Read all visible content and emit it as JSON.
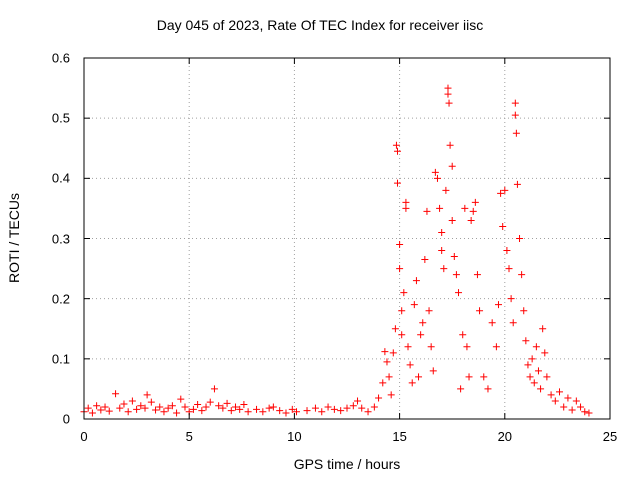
{
  "chart_data": {
    "type": "scatter",
    "title": "Day 045 of 2023, Rate Of TEC Index for receiver iisc",
    "xlabel": "GPS time / hours",
    "ylabel": "ROTI / TECUs",
    "xlim": [
      0,
      25
    ],
    "ylim": [
      0,
      0.6
    ],
    "xticks": [
      "0",
      "5",
      "10",
      "15",
      "20",
      "25"
    ],
    "yticks": [
      "0",
      "0.1",
      "0.2",
      "0.3",
      "0.4",
      "0.5",
      "0.6"
    ],
    "grid": true,
    "marker": "+",
    "color": "#ff0000",
    "series": [
      {
        "name": "ROTI",
        "points": [
          [
            0.0,
            0.012
          ],
          [
            0.2,
            0.018
          ],
          [
            0.4,
            0.01
          ],
          [
            0.6,
            0.022
          ],
          [
            0.8,
            0.015
          ],
          [
            1.0,
            0.02
          ],
          [
            1.2,
            0.013
          ],
          [
            1.5,
            0.042
          ],
          [
            1.7,
            0.018
          ],
          [
            1.9,
            0.025
          ],
          [
            2.1,
            0.012
          ],
          [
            2.3,
            0.03
          ],
          [
            2.5,
            0.016
          ],
          [
            2.7,
            0.022
          ],
          [
            2.9,
            0.018
          ],
          [
            3.0,
            0.04
          ],
          [
            3.2,
            0.028
          ],
          [
            3.4,
            0.015
          ],
          [
            3.6,
            0.02
          ],
          [
            3.8,
            0.012
          ],
          [
            4.0,
            0.018
          ],
          [
            4.2,
            0.022
          ],
          [
            4.4,
            0.01
          ],
          [
            4.6,
            0.033
          ],
          [
            4.8,
            0.02
          ],
          [
            5.0,
            0.012
          ],
          [
            5.2,
            0.016
          ],
          [
            5.4,
            0.024
          ],
          [
            5.6,
            0.014
          ],
          [
            5.8,
            0.02
          ],
          [
            6.0,
            0.028
          ],
          [
            6.2,
            0.05
          ],
          [
            6.4,
            0.022
          ],
          [
            6.6,
            0.018
          ],
          [
            6.8,
            0.026
          ],
          [
            7.0,
            0.014
          ],
          [
            7.2,
            0.02
          ],
          [
            7.4,
            0.016
          ],
          [
            7.6,
            0.024
          ],
          [
            7.8,
            0.012
          ],
          [
            8.2,
            0.016
          ],
          [
            8.5,
            0.012
          ],
          [
            8.8,
            0.018
          ],
          [
            9.0,
            0.02
          ],
          [
            9.3,
            0.014
          ],
          [
            9.6,
            0.01
          ],
          [
            9.9,
            0.016
          ],
          [
            10.1,
            0.012
          ],
          [
            10.6,
            0.014
          ],
          [
            11.0,
            0.018
          ],
          [
            11.3,
            0.012
          ],
          [
            11.6,
            0.02
          ],
          [
            11.9,
            0.016
          ],
          [
            12.2,
            0.014
          ],
          [
            12.5,
            0.018
          ],
          [
            12.8,
            0.022
          ],
          [
            13.0,
            0.03
          ],
          [
            13.2,
            0.018
          ],
          [
            13.5,
            0.012
          ],
          [
            13.8,
            0.02
          ],
          [
            14.0,
            0.035
          ],
          [
            14.2,
            0.06
          ],
          [
            14.3,
            0.112
          ],
          [
            14.4,
            0.095
          ],
          [
            14.5,
            0.07
          ],
          [
            14.6,
            0.04
          ],
          [
            14.7,
            0.11
          ],
          [
            14.8,
            0.15
          ],
          [
            14.85,
            0.455
          ],
          [
            14.9,
            0.445
          ],
          [
            14.9,
            0.392
          ],
          [
            15.0,
            0.25
          ],
          [
            15.0,
            0.29
          ],
          [
            15.1,
            0.18
          ],
          [
            15.1,
            0.14
          ],
          [
            15.2,
            0.21
          ],
          [
            15.3,
            0.35
          ],
          [
            15.3,
            0.36
          ],
          [
            15.4,
            0.12
          ],
          [
            15.5,
            0.09
          ],
          [
            15.6,
            0.06
          ],
          [
            15.7,
            0.19
          ],
          [
            15.8,
            0.23
          ],
          [
            15.9,
            0.07
          ],
          [
            16.0,
            0.14
          ],
          [
            16.1,
            0.16
          ],
          [
            16.2,
            0.265
          ],
          [
            16.3,
            0.345
          ],
          [
            16.4,
            0.18
          ],
          [
            16.5,
            0.12
          ],
          [
            16.6,
            0.08
          ],
          [
            16.7,
            0.41
          ],
          [
            16.8,
            0.4
          ],
          [
            16.9,
            0.35
          ],
          [
            17.0,
            0.31
          ],
          [
            17.0,
            0.28
          ],
          [
            17.1,
            0.25
          ],
          [
            17.2,
            0.38
          ],
          [
            17.3,
            0.54
          ],
          [
            17.3,
            0.55
          ],
          [
            17.35,
            0.525
          ],
          [
            17.4,
            0.455
          ],
          [
            17.5,
            0.42
          ],
          [
            17.5,
            0.33
          ],
          [
            17.6,
            0.27
          ],
          [
            17.7,
            0.24
          ],
          [
            17.8,
            0.21
          ],
          [
            17.9,
            0.05
          ],
          [
            18.0,
            0.14
          ],
          [
            18.1,
            0.35
          ],
          [
            18.2,
            0.12
          ],
          [
            18.3,
            0.07
          ],
          [
            18.4,
            0.33
          ],
          [
            18.5,
            0.345
          ],
          [
            18.6,
            0.36
          ],
          [
            18.7,
            0.24
          ],
          [
            18.8,
            0.18
          ],
          [
            19.0,
            0.07
          ],
          [
            19.2,
            0.05
          ],
          [
            19.4,
            0.16
          ],
          [
            19.6,
            0.12
          ],
          [
            19.7,
            0.19
          ],
          [
            19.8,
            0.375
          ],
          [
            19.9,
            0.32
          ],
          [
            20.0,
            0.38
          ],
          [
            20.1,
            0.28
          ],
          [
            20.2,
            0.25
          ],
          [
            20.3,
            0.2
          ],
          [
            20.4,
            0.16
          ],
          [
            20.5,
            0.525
          ],
          [
            20.5,
            0.505
          ],
          [
            20.55,
            0.475
          ],
          [
            20.6,
            0.39
          ],
          [
            20.7,
            0.3
          ],
          [
            20.8,
            0.24
          ],
          [
            20.9,
            0.18
          ],
          [
            21.0,
            0.13
          ],
          [
            21.1,
            0.09
          ],
          [
            21.2,
            0.07
          ],
          [
            21.3,
            0.1
          ],
          [
            21.4,
            0.06
          ],
          [
            21.5,
            0.12
          ],
          [
            21.6,
            0.08
          ],
          [
            21.7,
            0.05
          ],
          [
            21.8,
            0.15
          ],
          [
            21.9,
            0.11
          ],
          [
            22.0,
            0.07
          ],
          [
            22.2,
            0.04
          ],
          [
            22.4,
            0.03
          ],
          [
            22.6,
            0.045
          ],
          [
            22.8,
            0.02
          ],
          [
            23.0,
            0.035
          ],
          [
            23.2,
            0.015
          ],
          [
            23.4,
            0.03
          ],
          [
            23.6,
            0.02
          ],
          [
            23.8,
            0.012
          ],
          [
            24.0,
            0.01
          ]
        ]
      }
    ]
  }
}
